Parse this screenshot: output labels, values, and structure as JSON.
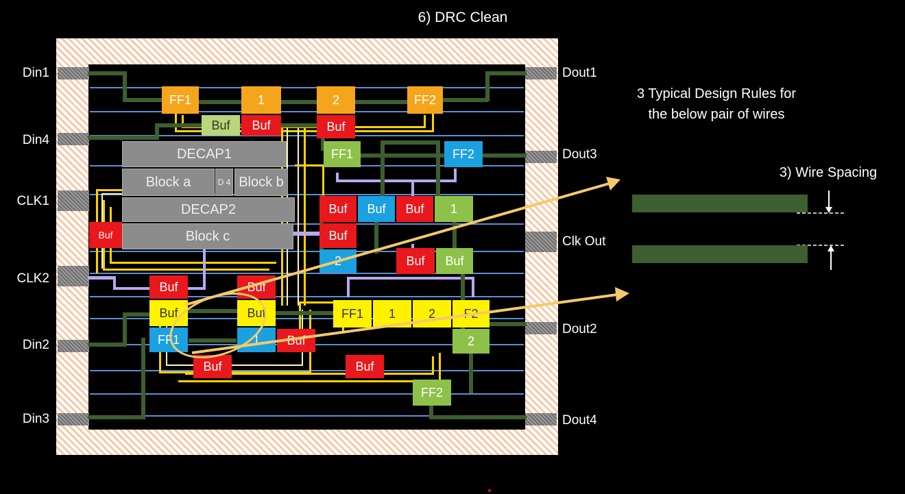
{
  "title": "6) DRC Clean",
  "pins": {
    "din1": "Din1",
    "din4": "Din4",
    "clk1": "CLK1",
    "clk2": "CLK2",
    "din2": "Din2",
    "din3": "Din3",
    "dout1": "Dout1",
    "dout3": "Dout3",
    "clk_out": "Clk Out",
    "dout2": "Dout2",
    "dout4": "Dout4"
  },
  "blocks": {
    "decap1": "DECAP1",
    "block_a": "Block a",
    "d4": "D 4",
    "block_b": "Block b",
    "decap2": "DECAP2",
    "block_c": "Block c"
  },
  "cells": {
    "ff1_top": "FF1",
    "one_top": "1",
    "two_top": "2",
    "ff2_top": "FF2",
    "buf_a": "Buf",
    "buf_b": "Buf",
    "buf_c": "Buf",
    "ff1_g": "FF1",
    "ff2_b": "FF2",
    "buf_r1": "Buf",
    "buf_b1": "Buf",
    "buf_r2": "Buf",
    "one_g": "1",
    "buf_left": "Buf",
    "buf_r3": "Buf",
    "two_b": "2",
    "buf_r4": "Buf",
    "buf_g": "Buf",
    "buf_y1r": "Buf",
    "buf_y2r": "Buf",
    "buf_y1": "Buf",
    "buf_y2": "Buf",
    "ff1_y": "FF1",
    "one_y": "1",
    "two_y": "2",
    "ff2_y": "F2",
    "ff_b2": "FF1",
    "one_b2": "1",
    "buf_r5": "Buf",
    "two_g2": "2",
    "buf_bot1": "Buf",
    "buf_bot2": "Buf",
    "ff2_bot": "FF2"
  },
  "side_panel": {
    "heading_line1": "3 Typical Design Rules for",
    "heading_line2": "the below pair of wires",
    "rule_label": "3) Wire Spacing"
  },
  "colors": {
    "wire_green": "#3d5e30",
    "clock_yellow": "#ffd200",
    "arrow_yellow": "#f5c96a",
    "pad_hatch": "#f6c9a8",
    "rail_blue": "#5b8fd6",
    "clock_purple": "#b8a8f0"
  }
}
